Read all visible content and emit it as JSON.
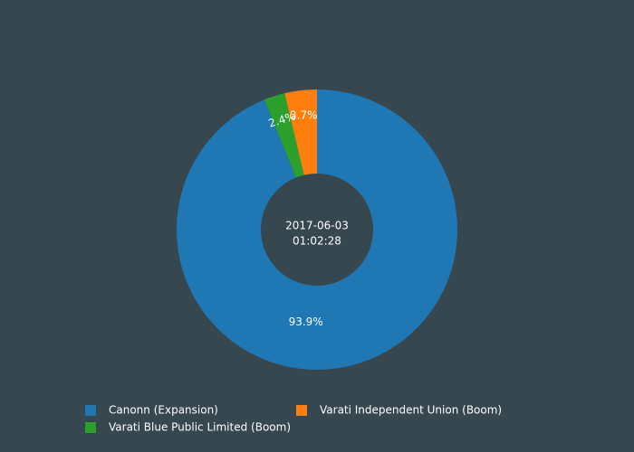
{
  "chart_data": {
    "type": "pie",
    "hole": true,
    "center_label": [
      "2017-06-03",
      "01:02:28"
    ],
    "slices": [
      {
        "name": "Canonn (Expansion)",
        "value": 93.9,
        "label": "93.9%",
        "color": "#1f77b4"
      },
      {
        "name": "Varati Blue Public Limited (Boom)",
        "value": 2.4,
        "label": "2.4%",
        "color": "#2ca02c"
      },
      {
        "name": "Varati Independent Union (Boom)",
        "value": 3.7,
        "label": "3.7%",
        "color": "#ff7f0e"
      }
    ],
    "direction": "clockwise",
    "legend": {
      "placement": "bottom",
      "entries": [
        {
          "name": "Canonn (Expansion)",
          "color": "#1f77b4"
        },
        {
          "name": "Varati Independent Union (Boom)",
          "color": "#ff7f0e"
        },
        {
          "name": "Varati Blue Public Limited (Boom)",
          "color": "#2ca02c"
        }
      ]
    }
  },
  "colors": {
    "background": "#37474f"
  }
}
